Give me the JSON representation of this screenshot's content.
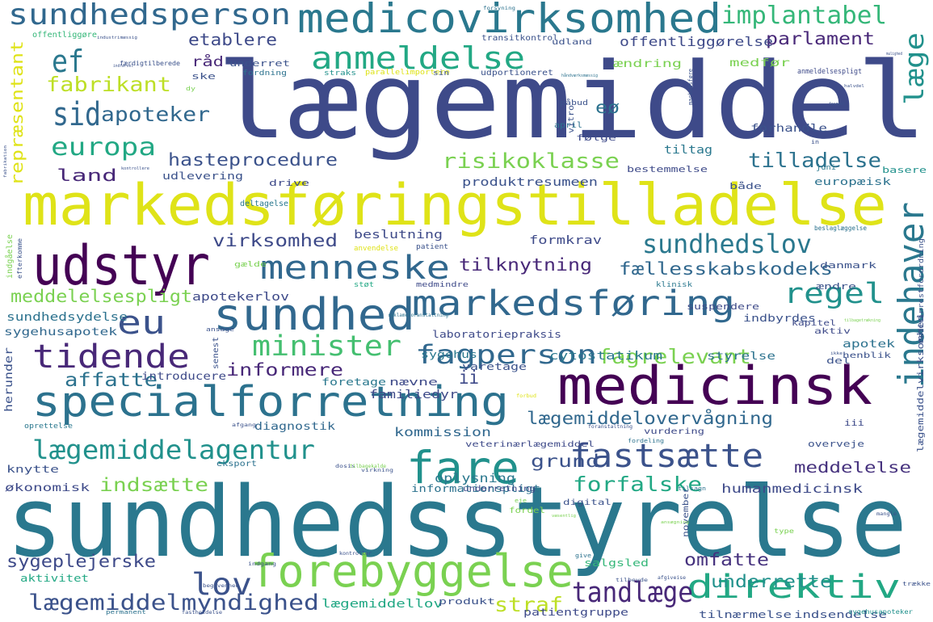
{
  "words": [
    {
      "text": "lægemiddel",
      "color": "#3e4a89"
    },
    {
      "text": "sundhedsstyrelse",
      "color": "#2a788e"
    },
    {
      "text": "markedsføringstilladelse",
      "color": "#dfe318"
    },
    {
      "text": "medicinsk",
      "color": "#440154"
    },
    {
      "text": "udstyr",
      "color": "#440154"
    },
    {
      "text": "specialforretning",
      "color": "#2c728e"
    },
    {
      "text": "forebyggelse",
      "color": "#7ad151"
    },
    {
      "text": "medicovirksomhed",
      "color": "#2a788e"
    },
    {
      "text": "sundhed",
      "color": "#31688e"
    },
    {
      "text": "markedsføring",
      "color": "#31688e"
    },
    {
      "text": "fare",
      "color": "#21918c"
    },
    {
      "text": "indehaver",
      "color": "#2a788e"
    },
    {
      "text": "sundhedsperson",
      "color": "#31688e"
    },
    {
      "text": "menneske",
      "color": "#31688e"
    },
    {
      "text": "anmeldelse",
      "color": "#22a884"
    },
    {
      "text": "tidende",
      "color": "#482878"
    },
    {
      "text": "fastsætte",
      "color": "#3b528b"
    },
    {
      "text": "sundhedslov",
      "color": "#2a788e"
    },
    {
      "text": "lægemiddelagentur",
      "color": "#21918c"
    },
    {
      "text": "direktiv",
      "color": "#22a884"
    },
    {
      "text": "minister",
      "color": "#44bf70"
    },
    {
      "text": "fagperson",
      "color": "#31688e"
    },
    {
      "text": "regel",
      "color": "#21918c"
    },
    {
      "text": "eu",
      "color": "#3b528b"
    },
    {
      "text": "tandlæge",
      "color": "#482878"
    },
    {
      "text": "lov",
      "color": "#3b528b"
    },
    {
      "text": "sid",
      "color": "#31688e"
    },
    {
      "text": "europa",
      "color": "#22a884"
    },
    {
      "text": "ef",
      "color": "#2a788e"
    },
    {
      "text": "læge",
      "color": "#21918c"
    },
    {
      "text": "lægemiddelmyndighed",
      "color": "#3b528b"
    },
    {
      "text": "implantabel",
      "color": "#35b779"
    },
    {
      "text": "risikoklasse",
      "color": "#7ad151"
    },
    {
      "text": "fabrikant",
      "color": "#bddf26"
    },
    {
      "text": "apoteker",
      "color": "#31688e"
    },
    {
      "text": "fagrelevant",
      "color": "#7ad151"
    },
    {
      "text": "forfalske",
      "color": "#22a884"
    },
    {
      "text": "tilknytning",
      "color": "#482878"
    },
    {
      "text": "fællesskabskodeks",
      "color": "#31688e"
    },
    {
      "text": "lægemiddelovervågning",
      "color": "#31688e"
    },
    {
      "text": "hasteprocedure",
      "color": "#3b528b"
    },
    {
      "text": "tilladelse",
      "color": "#2c728e"
    },
    {
      "text": "informere",
      "color": "#482878"
    },
    {
      "text": "virksomhed",
      "color": "#3e4a89"
    },
    {
      "text": "indsætte",
      "color": "#7ad151"
    },
    {
      "text": "omfatte",
      "color": "#46327e"
    },
    {
      "text": "sygeplejerske",
      "color": "#3e4a89"
    },
    {
      "text": "underrette",
      "color": "#21918c"
    },
    {
      "text": "meddelelsespligt",
      "color": "#7ad151"
    },
    {
      "text": "affatte",
      "color": "#2c728e"
    },
    {
      "text": "parlament",
      "color": "#482878"
    },
    {
      "text": "etablere",
      "color": "#3e4a89"
    },
    {
      "text": "straf",
      "color": "#bddf26"
    },
    {
      "text": "eø",
      "color": "#2c728e"
    },
    {
      "text": "grund",
      "color": "#3b528b"
    },
    {
      "text": "land",
      "color": "#482878"
    },
    {
      "text": "ii",
      "color": "#3e4a89"
    },
    {
      "text": "meddelelse",
      "color": "#46327e"
    },
    {
      "text": "repræsentant",
      "color": "#dfe318"
    },
    {
      "text": "råd",
      "color": "#482878"
    },
    {
      "text": "offentliggørelse",
      "color": "#3e4a89"
    },
    {
      "text": "kommission",
      "color": "#31688e"
    },
    {
      "text": "oplysning",
      "color": "#2a788e"
    },
    {
      "text": "humanmedicinsk",
      "color": "#3e4a89"
    },
    {
      "text": "lægemiddellov",
      "color": "#22a884"
    },
    {
      "text": "cytostatikum",
      "color": "#2a788e"
    },
    {
      "text": "familiedyr",
      "color": "#3e4a89"
    },
    {
      "text": "produktresumeen",
      "color": "#3b528b"
    },
    {
      "text": "apotekerlov",
      "color": "#3e4a89"
    },
    {
      "text": "sundhedsydelse",
      "color": "#2c728e"
    },
    {
      "text": "sygehusapotek",
      "color": "#31688e"
    },
    {
      "text": "herunder",
      "color": "#3b528b"
    },
    {
      "text": "beslutning",
      "color": "#3e4a89"
    },
    {
      "text": "formkrav",
      "color": "#3e4a89"
    },
    {
      "text": "tiltag",
      "color": "#2a788e"
    },
    {
      "text": "forhandle",
      "color": "#3b528b"
    },
    {
      "text": "europæisk",
      "color": "#2c728e"
    },
    {
      "text": "apotek",
      "color": "#2c728e"
    },
    {
      "text": "styrelse",
      "color": "#2c728e"
    },
    {
      "text": "introducere",
      "color": "#3e4a89"
    },
    {
      "text": "diagnostik",
      "color": "#31688e"
    },
    {
      "text": "laboratoriepraksis",
      "color": "#3e4a89"
    },
    {
      "text": "informationspligt",
      "color": "#2c728e"
    },
    {
      "text": "salgsled",
      "color": "#35b779"
    },
    {
      "text": "tilnærmelse",
      "color": "#3b528b"
    },
    {
      "text": "indsendelse",
      "color": "#3b528b"
    },
    {
      "text": "patientgruppe",
      "color": "#3e4a89"
    },
    {
      "text": "produkt",
      "color": "#3b528b"
    },
    {
      "text": "økonomisk",
      "color": "#3e4a89"
    },
    {
      "text": "knytte",
      "color": "#3b528b"
    },
    {
      "text": "aktivitet",
      "color": "#22a884"
    },
    {
      "text": "foretage",
      "color": "#2a788e"
    },
    {
      "text": "nævne",
      "color": "#3e4a89"
    },
    {
      "text": "varetage",
      "color": "#3b528b"
    },
    {
      "text": "sygehus",
      "color": "#2a788e"
    },
    {
      "text": "indbyrdes",
      "color": "#3b528b"
    },
    {
      "text": "del",
      "color": "#3b528b"
    },
    {
      "text": "ændring",
      "color": "#7ad151"
    },
    {
      "text": "medfør",
      "color": "#7ad151"
    },
    {
      "text": "underret",
      "color": "#3b528b"
    },
    {
      "text": "ske",
      "color": "#3b528b"
    },
    {
      "text": "følge",
      "color": "#3e4a89"
    },
    {
      "text": "udlevering",
      "color": "#3b528b"
    },
    {
      "text": "drive",
      "color": "#3e4a89"
    },
    {
      "text": "bestemmelse",
      "color": "#3e4a89"
    },
    {
      "text": "både",
      "color": "#3b528b"
    },
    {
      "text": "basere",
      "color": "#21918c"
    },
    {
      "text": "danmark",
      "color": "#3b528b"
    },
    {
      "text": "ændre",
      "color": "#3b528b"
    },
    {
      "text": "suspendere",
      "color": "#3e4a89"
    },
    {
      "text": "kapitel",
      "color": "#3e4a89"
    },
    {
      "text": "aktiv",
      "color": "#3e4a89"
    },
    {
      "text": "henblik",
      "color": "#3b528b"
    },
    {
      "text": "iii",
      "color": "#3e4a89"
    },
    {
      "text": "overveje",
      "color": "#3b528b"
    },
    {
      "text": "vurdering",
      "color": "#3e4a89"
    },
    {
      "text": "digital",
      "color": "#3b528b"
    },
    {
      "text": "november",
      "color": "#3b528b"
    },
    {
      "text": "eksport",
      "color": "#2c728e"
    },
    {
      "text": "veterinærlægemiddel",
      "color": "#3e4a89"
    },
    {
      "text": "underretning",
      "color": "#3e4a89"
    },
    {
      "text": "fordel",
      "color": "#7ad151"
    },
    {
      "text": "udland",
      "color": "#3b528b"
    },
    {
      "text": "transitkontrol",
      "color": "#3b528b"
    },
    {
      "text": "udportioneret",
      "color": "#3b528b"
    },
    {
      "text": "fordning",
      "color": "#2c728e"
    },
    {
      "text": "straks",
      "color": "#21918c"
    },
    {
      "text": "parallelimportere",
      "color": "#dfe318"
    },
    {
      "text": "sin",
      "color": "#3b528b"
    },
    {
      "text": "offentliggøre",
      "color": "#35b779"
    },
    {
      "text": "færdigtilberede",
      "color": "#3b528b"
    },
    {
      "text": "vitro",
      "color": "#3b528b"
    },
    {
      "text": "april",
      "color": "#2c728e"
    },
    {
      "text": "påbud",
      "color": "#3b528b"
    },
    {
      "text": "juni",
      "color": "#2a788e"
    },
    {
      "text": "deltagelse",
      "color": "#2a788e"
    },
    {
      "text": "anvendelse",
      "color": "#dfe318"
    },
    {
      "text": "patient",
      "color": "#3b528b"
    },
    {
      "text": "gælde",
      "color": "#7ad151"
    },
    {
      "text": "støt",
      "color": "#22a884"
    },
    {
      "text": "medmindre",
      "color": "#3e4a89"
    },
    {
      "text": "klinisk",
      "color": "#2a788e"
    },
    {
      "text": "efterkomme",
      "color": "#3b528b"
    },
    {
      "text": "ansage",
      "color": "#3b528b"
    },
    {
      "text": "senest",
      "color": "#3b528b"
    },
    {
      "text": "oprettelse",
      "color": "#2a788e"
    },
    {
      "text": "indgåelse",
      "color": "#7ad151"
    },
    {
      "text": "beslaglæggelse",
      "color": "#2c728e"
    },
    {
      "text": "medicinrestforordning",
      "color": "#3b528b"
    },
    {
      "text": "lægemiddelvirksomhed",
      "color": "#3b528b"
    },
    {
      "text": "anmeldelsespligt",
      "color": "#3e4a89"
    },
    {
      "text": "forsyning",
      "color": "#2c728e"
    },
    {
      "text": "markedsføre",
      "color": "#3b528b"
    },
    {
      "text": "in",
      "color": "#3b528b"
    },
    {
      "text": "dy",
      "color": "#7ad151"
    },
    {
      "text": "eje",
      "color": "#7ad151"
    },
    {
      "text": "type",
      "color": "#7ad151"
    },
    {
      "text": "give",
      "color": "#2c728e"
    },
    {
      "text": "sygehusapoteker",
      "color": "#21918c"
    },
    {
      "text": "trække",
      "color": "#3b528b"
    },
    {
      "text": "afgiveise",
      "color": "#3b528b"
    },
    {
      "text": "tilbeyde",
      "color": "#3b528b"
    },
    {
      "text": "permanent",
      "color": "#2c728e"
    },
    {
      "text": "fordeling",
      "color": "#2c728e"
    },
    {
      "text": "tilsagn",
      "color": "#2c728e"
    },
    {
      "text": "dosis",
      "color": "#3b528b"
    },
    {
      "text": "indgang",
      "color": "#3b528b"
    },
    {
      "text": "virkning",
      "color": "#3b528b"
    },
    {
      "text": "foranstaltning",
      "color": "#3b528b"
    },
    {
      "text": "ansøgning",
      "color": "#7ad151"
    },
    {
      "text": "begivenhed",
      "color": "#3b528b"
    },
    {
      "text": "fastholdelse",
      "color": "#3b528b"
    },
    {
      "text": "kontroller",
      "color": "#3b528b"
    },
    {
      "text": "reklameforanstaltning",
      "color": "#2c728e"
    },
    {
      "text": "tilbagekalde",
      "color": "#7ad151"
    },
    {
      "text": "forbud",
      "color": "#dfe318"
    },
    {
      "text": "afgang",
      "color": "#3b528b"
    },
    {
      "text": "tilbagetrækning",
      "color": "#7ad151"
    },
    {
      "text": "ikke",
      "color": "#3b528b"
    },
    {
      "text": "mangle",
      "color": "#3b528b"
    },
    {
      "text": "væsentlig",
      "color": "#7ad151"
    },
    {
      "text": "håndværksmæssig",
      "color": "#2c728e"
    },
    {
      "text": "industrimæssig",
      "color": "#3b528b"
    },
    {
      "text": "fabrikation",
      "color": "#3b528b"
    },
    {
      "text": "kontrollere",
      "color": "#3b528b"
    },
    {
      "text": "indførsel",
      "color": "#3b528b"
    },
    {
      "text": "mulighed",
      "color": "#3b528b"
    },
    {
      "text": "halvdel",
      "color": "#3b528b"
    },
    {
      "text": "forøget",
      "color": "#3b528b"
    }
  ]
}
